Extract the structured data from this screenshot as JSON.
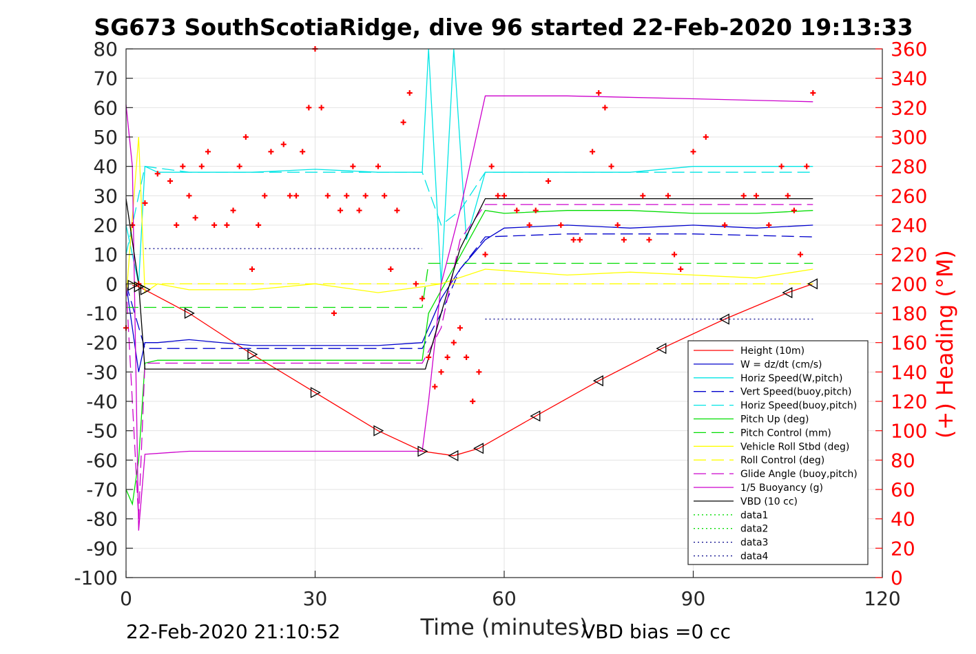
{
  "chart_data": {
    "type": "line",
    "title": "SG673 SouthScotiaRidge, dive 96 started 22-Feb-2020 19:13:33",
    "xlabel": "Time (minutes)",
    "ylabel": "",
    "ylabel_right": "(+) Heading (°M)",
    "xlim": [
      0,
      120
    ],
    "ylim": [
      -100,
      80
    ],
    "ylim_right": [
      0,
      360
    ],
    "x_ticks": [
      "0",
      "30",
      "60",
      "90",
      "120"
    ],
    "y_ticks": [
      "80",
      "70",
      "60",
      "50",
      "40",
      "30",
      "20",
      "10",
      "0",
      "-10",
      "-20",
      "-30",
      "-40",
      "-50",
      "-60",
      "-70",
      "-80",
      "-90",
      "-100"
    ],
    "y_ticks_right": [
      "360",
      "340",
      "320",
      "300",
      "280",
      "260",
      "240",
      "220",
      "200",
      "180",
      "160",
      "140",
      "120",
      "100",
      "80",
      "60",
      "40",
      "20",
      "0"
    ],
    "grid": true,
    "legend_position": "bottom-right",
    "footer_left": "22-Feb-2020 21:10:52",
    "footer_right": "VBD bias =0 cc",
    "series": [
      {
        "name": "Height (10m)",
        "color": "#ff0000",
        "style": "solid",
        "x": [
          1,
          2,
          3,
          10,
          20,
          30,
          40,
          47,
          52,
          56,
          65,
          75,
          85,
          95,
          105,
          109
        ],
        "y": [
          -0.5,
          -1,
          -2,
          -10,
          -24,
          -37,
          -50,
          -57,
          -58.5,
          -56,
          -45,
          -33,
          -22,
          -12,
          -3,
          0
        ]
      },
      {
        "name": "W = dz/dt (cm/s)",
        "color": "#0000cc",
        "style": "solid",
        "x": [
          0,
          2,
          3,
          5,
          10,
          20,
          30,
          40,
          47,
          50,
          53,
          57,
          60,
          70,
          80,
          90,
          100,
          109
        ],
        "y": [
          0,
          -30,
          -20,
          -20,
          -19,
          -21,
          -21,
          -21,
          -20,
          -5,
          5,
          15,
          19,
          20,
          19,
          20,
          19,
          20
        ]
      },
      {
        "name": "Horiz Speed(W,pitch)",
        "color": "#00e5e5",
        "style": "solid",
        "x": [
          0,
          2,
          3,
          5,
          10,
          20,
          30,
          40,
          47,
          48,
          50,
          52,
          54,
          57,
          60,
          70,
          80,
          90,
          100,
          109
        ],
        "y": [
          20,
          0,
          40,
          38,
          38,
          38,
          39,
          38,
          38,
          80,
          0,
          80,
          15,
          38,
          38,
          38,
          38,
          40,
          40,
          40
        ]
      },
      {
        "name": "Vert Speed(buoy,pitch)",
        "color": "#0000cc",
        "style": "dashed",
        "x": [
          0,
          3,
          10,
          20,
          30,
          40,
          47,
          50,
          53,
          57,
          70,
          90,
          109
        ],
        "y": [
          0,
          -22,
          -22,
          -22,
          -22,
          -22,
          -22,
          -10,
          5,
          16,
          17,
          17,
          16
        ]
      },
      {
        "name": "Horiz Speed(buoy,pitch)",
        "color": "#00e5e5",
        "style": "dashed",
        "x": [
          0,
          3,
          10,
          20,
          30,
          40,
          47,
          50,
          53,
          57,
          70,
          90,
          109
        ],
        "y": [
          10,
          40,
          38,
          38,
          38,
          38,
          38,
          20,
          25,
          38,
          38,
          38,
          38
        ]
      },
      {
        "name": "Pitch Up (deg)",
        "color": "#00dd00",
        "style": "solid",
        "x": [
          0,
          1,
          2,
          3,
          5,
          10,
          20,
          30,
          40,
          47,
          48,
          57,
          60,
          70,
          80,
          90,
          100,
          109
        ],
        "y": [
          -70,
          -75,
          -60,
          -27,
          -26,
          -26,
          -26,
          -26,
          -26,
          -26,
          -10,
          25,
          24,
          25,
          25,
          24,
          24,
          25
        ]
      },
      {
        "name": "Pitch Control (mm)",
        "color": "#00dd00",
        "style": "dashed",
        "x": [
          0,
          5,
          47,
          48,
          57,
          109
        ],
        "y": [
          -8,
          -8,
          -8,
          7,
          7,
          7
        ]
      },
      {
        "name": "Vehicle Roll Stbd (deg)",
        "color": "#ffff00",
        "style": "solid",
        "x": [
          0,
          2,
          3,
          5,
          10,
          20,
          30,
          40,
          47,
          50,
          57,
          70,
          80,
          90,
          100,
          109
        ],
        "y": [
          -5,
          50,
          -3,
          0,
          -2,
          -2,
          0,
          -3,
          -1,
          0,
          5,
          3,
          4,
          3,
          2,
          5
        ]
      },
      {
        "name": "Roll Control (deg)",
        "color": "#ffff00",
        "style": "dashed",
        "x": [
          0,
          109
        ],
        "y": [
          0,
          0
        ]
      },
      {
        "name": "Glide Angle (buoy,pitch)",
        "color": "#cc00cc",
        "style": "dashed",
        "x": [
          0,
          2,
          3,
          10,
          20,
          30,
          40,
          47,
          50,
          53,
          57,
          70,
          90,
          109
        ],
        "y": [
          0,
          -80,
          -27,
          -27,
          -27,
          -27,
          -27,
          -27,
          -15,
          15,
          27,
          27,
          27,
          27
        ]
      },
      {
        "name": "1/5 Buoyancy (g)",
        "color": "#cc00cc",
        "style": "solid",
        "x": [
          0,
          1,
          2,
          3,
          10,
          20,
          30,
          40,
          47,
          48,
          50,
          53,
          57,
          70,
          90,
          109
        ],
        "y": [
          61,
          40,
          -84,
          -58,
          -57,
          -57,
          -57,
          -57,
          -57,
          -40,
          0,
          25,
          64,
          64,
          63,
          62
        ]
      },
      {
        "name": "VBD (10 cc)",
        "color": "#000000",
        "style": "solid",
        "x": [
          0,
          2,
          3,
          10,
          20,
          30,
          40,
          47.5,
          50,
          53,
          57,
          70,
          90,
          109
        ],
        "y": [
          29,
          0,
          -29,
          -29,
          -29,
          -29,
          -29,
          -29,
          -10,
          12,
          29,
          29,
          29,
          29
        ]
      },
      {
        "name": "data1",
        "color": "#00dd00",
        "style": "dotted",
        "x": [],
        "y": []
      },
      {
        "name": "data2",
        "color": "#00dd00",
        "style": "dotted",
        "x": [],
        "y": []
      },
      {
        "name": "data3",
        "color": "#000088",
        "style": "dotted",
        "x": [
          3,
          47
        ],
        "y": [
          12,
          12
        ]
      },
      {
        "name": "data4",
        "color": "#000088",
        "style": "dotted",
        "x": [
          57,
          109
        ],
        "y": [
          -12,
          -12
        ]
      }
    ],
    "heading_series": {
      "name": "Heading (°M)",
      "color": "#ff0000",
      "marker": "+",
      "axis": "right",
      "x": [
        0,
        1,
        2,
        3,
        5,
        7,
        8,
        9,
        10,
        11,
        12,
        13,
        14,
        16,
        17,
        18,
        19,
        20,
        21,
        22,
        23,
        25,
        26,
        27,
        28,
        29,
        30,
        31,
        32,
        33,
        34,
        35,
        36,
        37,
        38,
        40,
        41,
        42,
        43,
        44,
        45,
        46,
        47,
        48,
        49,
        50,
        51,
        52,
        53,
        54,
        55,
        56,
        57,
        58,
        59,
        60,
        62,
        64,
        65,
        67,
        69,
        71,
        72,
        74,
        75,
        76,
        77,
        78,
        79,
        82,
        83,
        86,
        87,
        88,
        90,
        92,
        95,
        98,
        100,
        102,
        104,
        105,
        106,
        107,
        108,
        109
      ],
      "y": [
        170,
        240,
        200,
        255,
        275,
        270,
        240,
        280,
        260,
        245,
        280,
        290,
        240,
        240,
        250,
        280,
        300,
        210,
        240,
        260,
        290,
        295,
        260,
        260,
        290,
        320,
        360,
        320,
        260,
        180,
        250,
        260,
        280,
        250,
        260,
        280,
        260,
        210,
        250,
        310,
        330,
        200,
        190,
        150,
        130,
        140,
        150,
        160,
        170,
        150,
        120,
        140,
        220,
        280,
        260,
        260,
        250,
        240,
        250,
        270,
        240,
        230,
        230,
        290,
        330,
        320,
        280,
        240,
        230,
        260,
        230,
        260,
        220,
        210,
        290,
        300,
        240,
        260,
        260,
        240,
        280,
        260,
        250,
        220,
        280,
        330
      ]
    }
  }
}
